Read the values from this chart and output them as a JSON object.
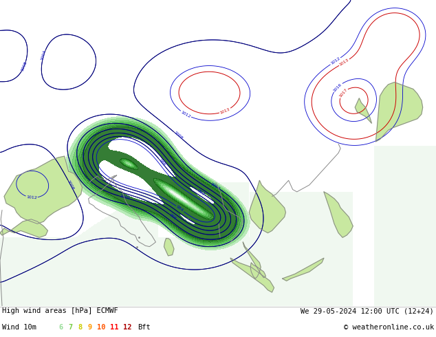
{
  "title_left": "High wind areas [hPa] ECMWF",
  "title_right": "We 29-05-2024 12:00 UTC (12+24)",
  "subtitle_left": "Wind 10m",
  "subtitle_right": "© weatheronline.co.uk",
  "legend_nums": [
    "6",
    "7",
    "8",
    "9",
    "10",
    "11",
    "12"
  ],
  "legend_colors": [
    "#99dd99",
    "#77cc44",
    "#cccc00",
    "#ff9900",
    "#ff5500",
    "#ff0000",
    "#aa0000"
  ],
  "fig_width": 6.34,
  "fig_height": 4.9,
  "dpi": 100,
  "bottom_bar_color": "#ffffff",
  "title_fontsize": 7.5,
  "legend_fontsize": 7.5,
  "map_bg": "#c8e8a0",
  "ocean_color": "#f0f8f0",
  "wind_color_6": "#b8e8b8",
  "wind_color_7": "#90d890",
  "wind_color_8": "#60c060",
  "wind_color_9": "#40a840",
  "coast_color": "#888888",
  "isobar_blue": "#0000cc",
  "isobar_red": "#cc0000",
  "isobar_black": "#000000",
  "map_lon_min": 40,
  "map_lon_max": 145,
  "map_lat_min": -5,
  "map_lat_max": 62
}
